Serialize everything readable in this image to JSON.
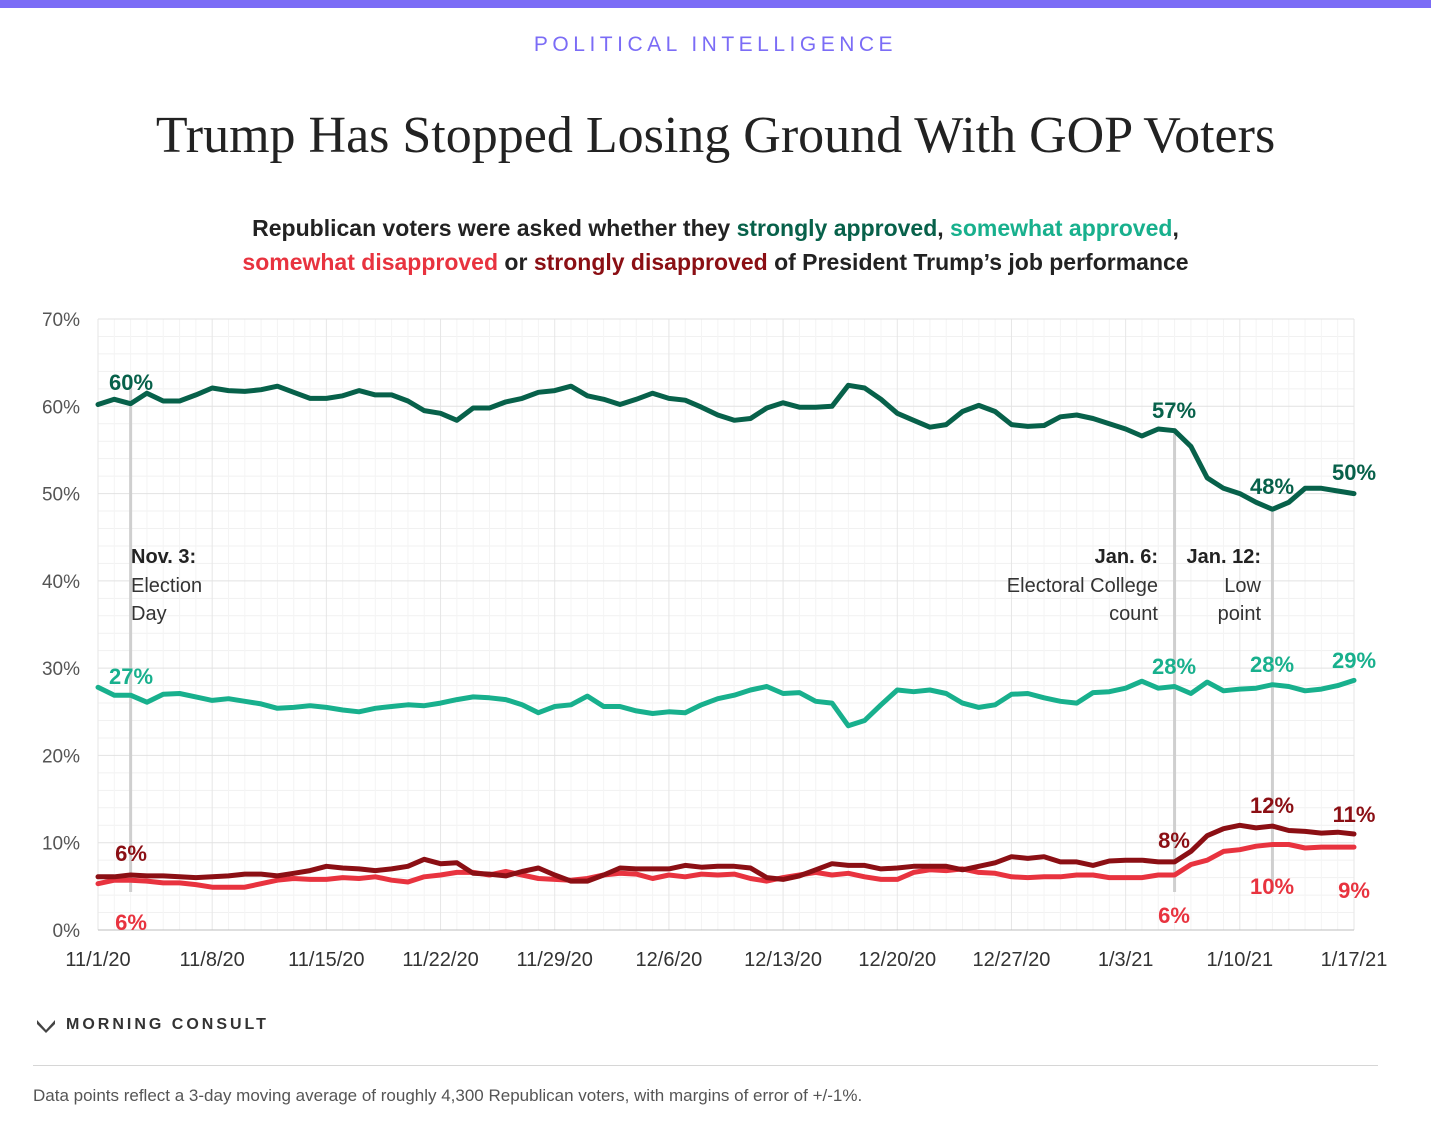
{
  "header": {
    "kicker": "POLITICAL INTELLIGENCE",
    "title": "Trump Has Stopped Losing Ground With GOP Voters",
    "subtitle": {
      "p1": "Republican voters were asked whether they ",
      "strongly_approved": "strongly approved",
      "p2": ", ",
      "somewhat_approved": "somewhat approved",
      "p3": ",",
      "somewhat_disapproved": "somewhat disapproved",
      "p4": " or ",
      "strongly_disapproved": "strongly disapproved",
      "p5": " of President Trump’s job performance"
    }
  },
  "colors": {
    "strongly_approve": "#07614a",
    "somewhat_approve": "#18b08d",
    "somewhat_disapprove": "#e8333f",
    "strongly_disapprove": "#8b0f14",
    "accent": "#7b6cf6"
  },
  "chart_data": {
    "type": "line",
    "title": "Trump Has Stopped Losing Ground With GOP Voters",
    "xlabel": "",
    "ylabel": "",
    "x_start": "11/1/20",
    "x_end": "1/17/21",
    "x_ticks": [
      "11/1/20",
      "11/8/20",
      "11/15/20",
      "11/22/20",
      "11/29/20",
      "12/6/20",
      "12/13/20",
      "12/20/20",
      "12/27/20",
      "1/3/21",
      "1/10/21",
      "1/17/21"
    ],
    "ylim": [
      0,
      70
    ],
    "y_ticks": [
      0,
      10,
      20,
      30,
      40,
      50,
      60,
      70
    ],
    "y_tick_labels": [
      "0%",
      "10%",
      "20%",
      "30%",
      "40%",
      "50%",
      "60%",
      "70%"
    ],
    "grid": true,
    "series": [
      {
        "name": "strongly approved",
        "color_key": "strongly_approve",
        "values": [
          60.2,
          60.8,
          60.3,
          61.5,
          60.6,
          60.6,
          61.3,
          62.1,
          61.8,
          61.7,
          61.9,
          62.3,
          61.6,
          60.9,
          60.9,
          61.2,
          61.8,
          61.3,
          61.3,
          60.6,
          59.5,
          59.2,
          58.4,
          59.8,
          59.8,
          60.5,
          60.9,
          61.6,
          61.8,
          62.3,
          61.2,
          60.8,
          60.2,
          60.8,
          61.5,
          60.9,
          60.7,
          59.9,
          59.0,
          58.4,
          58.6,
          59.8,
          60.4,
          59.9,
          59.9,
          60.0,
          62.4,
          62.1,
          60.8,
          59.2,
          58.4,
          57.6,
          57.9,
          59.4,
          60.1,
          59.4,
          57.9,
          57.7,
          57.8,
          58.8,
          59.0,
          58.6,
          58.0,
          57.4,
          56.6,
          57.4,
          57.2,
          55.4,
          51.8,
          50.6,
          50.0,
          49.0,
          48.2,
          49.0,
          50.6,
          50.6,
          50.3,
          50.0
        ]
      },
      {
        "name": "somewhat approved",
        "color_key": "somewhat_approve",
        "values": [
          27.8,
          26.9,
          26.9,
          26.1,
          27.0,
          27.1,
          26.7,
          26.3,
          26.5,
          26.2,
          25.9,
          25.4,
          25.5,
          25.7,
          25.5,
          25.2,
          25.0,
          25.4,
          25.6,
          25.8,
          25.7,
          26.0,
          26.4,
          26.7,
          26.6,
          26.4,
          25.8,
          24.9,
          25.6,
          25.8,
          26.8,
          25.6,
          25.6,
          25.1,
          24.8,
          25.0,
          24.9,
          25.8,
          26.5,
          26.9,
          27.5,
          27.9,
          27.1,
          27.2,
          26.2,
          26.0,
          23.4,
          24.0,
          25.8,
          27.5,
          27.3,
          27.5,
          27.1,
          26.0,
          25.5,
          25.8,
          27.0,
          27.1,
          26.6,
          26.2,
          26.0,
          27.2,
          27.3,
          27.7,
          28.5,
          27.7,
          27.9,
          27.1,
          28.4,
          27.4,
          27.6,
          27.7,
          28.1,
          27.9,
          27.4,
          27.6,
          28.0,
          28.6
        ]
      },
      {
        "name": "somewhat disapproved",
        "color_key": "somewhat_disapprove",
        "values": [
          5.3,
          5.7,
          5.7,
          5.6,
          5.4,
          5.4,
          5.2,
          4.9,
          4.9,
          4.9,
          5.3,
          5.7,
          5.9,
          5.8,
          5.8,
          6.0,
          5.9,
          6.1,
          5.7,
          5.5,
          6.1,
          6.3,
          6.6,
          6.6,
          6.3,
          6.7,
          6.3,
          5.9,
          5.8,
          5.7,
          5.9,
          6.3,
          6.5,
          6.4,
          5.9,
          6.3,
          6.1,
          6.4,
          6.3,
          6.4,
          5.9,
          5.6,
          6.0,
          6.3,
          6.6,
          6.3,
          6.5,
          6.1,
          5.8,
          5.8,
          6.6,
          6.9,
          6.8,
          7.0,
          6.6,
          6.5,
          6.1,
          6.0,
          6.1,
          6.1,
          6.3,
          6.3,
          6.0,
          6.0,
          6.0,
          6.3,
          6.3,
          7.5,
          8.0,
          9.0,
          9.2,
          9.6,
          9.8,
          9.8,
          9.4,
          9.5,
          9.5,
          9.5
        ]
      },
      {
        "name": "strongly disapproved",
        "color_key": "strongly_disapprove",
        "values": [
          6.1,
          6.1,
          6.3,
          6.2,
          6.2,
          6.1,
          6.0,
          6.1,
          6.2,
          6.4,
          6.4,
          6.2,
          6.5,
          6.8,
          7.3,
          7.1,
          7.0,
          6.8,
          7.0,
          7.3,
          8.1,
          7.6,
          7.7,
          6.5,
          6.4,
          6.2,
          6.7,
          7.1,
          6.3,
          5.6,
          5.6,
          6.3,
          7.1,
          7.0,
          7.0,
          7.0,
          7.4,
          7.2,
          7.3,
          7.3,
          7.1,
          6.0,
          5.8,
          6.2,
          6.9,
          7.6,
          7.4,
          7.4,
          7.0,
          7.1,
          7.3,
          7.3,
          7.3,
          6.9,
          7.3,
          7.7,
          8.4,
          8.2,
          8.4,
          7.8,
          7.8,
          7.4,
          7.9,
          8.0,
          8.0,
          7.8,
          7.8,
          9.0,
          10.8,
          11.6,
          12.0,
          11.7,
          11.9,
          11.4,
          11.3,
          11.1,
          11.2,
          11.0
        ]
      }
    ],
    "data_labels": [
      {
        "text": "60%",
        "series": 0
      },
      {
        "text": "57%",
        "series": 0
      },
      {
        "text": "48%",
        "series": 0
      },
      {
        "text": "50%",
        "series": 0
      },
      {
        "text": "27%",
        "series": 1
      },
      {
        "text": "28%",
        "series": 1
      },
      {
        "text": "28%",
        "series": 1
      },
      {
        "text": "29%",
        "series": 1
      },
      {
        "text": "6%",
        "series": 2
      },
      {
        "text": "6%",
        "series": 2
      },
      {
        "text": "10%",
        "series": 2
      },
      {
        "text": "9%",
        "series": 2
      },
      {
        "text": "6%",
        "series": 3
      },
      {
        "text": "8%",
        "series": 3
      },
      {
        "text": "12%",
        "series": 3
      },
      {
        "text": "11%",
        "series": 3
      }
    ],
    "annotations": [
      {
        "date": "11/3/20",
        "bold": "Nov. 3:",
        "lines": [
          "Election",
          "Day"
        ]
      },
      {
        "date": "1/6/21",
        "bold": "Jan. 6:",
        "lines": [
          "Electoral College",
          "count"
        ]
      },
      {
        "date": "1/12/21",
        "bold": "Jan. 12:",
        "lines": [
          "Low",
          "point"
        ]
      }
    ]
  },
  "footer": {
    "brand": "MORNING CONSULT",
    "note": "Data points reflect a 3-day moving average of roughly 4,300 Republican voters, with margins of error of +/-1%."
  }
}
